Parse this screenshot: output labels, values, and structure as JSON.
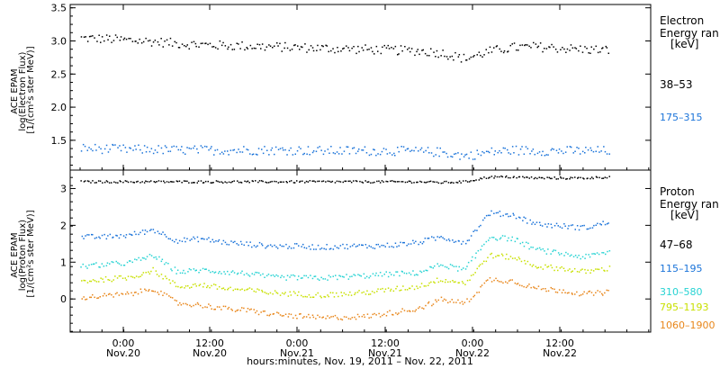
{
  "chart_data": [
    {
      "type": "scatter",
      "panel": "top",
      "ylabel_lines": [
        "ACE EPAM",
        "log(Electron Flux)",
        "[1/(cm²s ster MeV)]"
      ],
      "yticks": [
        "1.5",
        "2.0",
        "2.5",
        "3.0",
        "3.5"
      ],
      "ylim": [
        1.05,
        3.55
      ],
      "legend_title": [
        "Electron",
        "Energy ran",
        "[keV]"
      ],
      "series": [
        {
          "name": "38–53",
          "color": "#000000",
          "values": [
            3.05,
            3.04,
            3.02,
            3.0,
            2.97,
            2.95,
            2.94,
            2.93,
            2.92,
            2.91,
            2.9,
            2.89,
            2.88,
            2.87,
            2.86,
            2.83,
            2.74,
            2.85,
            2.91,
            2.92,
            2.9,
            2.88,
            2.87
          ]
        },
        {
          "name": "175–315",
          "color": "#1a73d9",
          "values": [
            1.39,
            1.38,
            1.37,
            1.37,
            1.36,
            1.36,
            1.36,
            1.36,
            1.36,
            1.36,
            1.35,
            1.35,
            1.35,
            1.35,
            1.34,
            1.33,
            1.27,
            1.33,
            1.36,
            1.35,
            1.35,
            1.35,
            1.35
          ]
        }
      ]
    },
    {
      "type": "scatter",
      "panel": "bottom",
      "ylabel_lines": [
        "ACE EPAM",
        "log(Proton Flux)",
        "[1/(cm²s ster MeV)]"
      ],
      "yticks": [
        "0",
        "1",
        "2",
        "3"
      ],
      "ylim": [
        -0.9,
        3.5
      ],
      "legend_title": [
        "Proton",
        "Energy ran",
        "[keV]"
      ],
      "series": [
        {
          "name": "47–68",
          "color": "#000000",
          "values": [
            3.2,
            3.2,
            3.2,
            3.2,
            3.2,
            3.2,
            3.2,
            3.2,
            3.2,
            3.2,
            3.2,
            3.2,
            3.2,
            3.2,
            3.2,
            3.18,
            3.2,
            3.33,
            3.33,
            3.3,
            3.3,
            3.3,
            3.33
          ]
        },
        {
          "name": "115–195",
          "color": "#1a73d9",
          "values": [
            1.7,
            1.7,
            1.75,
            1.9,
            1.6,
            1.65,
            1.55,
            1.5,
            1.45,
            1.45,
            1.42,
            1.45,
            1.45,
            1.48,
            1.55,
            1.7,
            1.55,
            2.35,
            2.3,
            2.05,
            2.0,
            1.95,
            2.1
          ]
        },
        {
          "name": "310–580",
          "color": "#27d3d3",
          "values": [
            0.9,
            0.95,
            1.0,
            1.2,
            0.75,
            0.8,
            0.75,
            0.7,
            0.6,
            0.6,
            0.58,
            0.62,
            0.65,
            0.7,
            0.72,
            0.95,
            0.8,
            1.7,
            1.65,
            1.35,
            1.25,
            1.15,
            1.3
          ]
        },
        {
          "name": "795–1193",
          "color": "#c8e000",
          "values": [
            0.5,
            0.55,
            0.6,
            0.8,
            0.35,
            0.4,
            0.3,
            0.25,
            0.18,
            0.15,
            0.12,
            0.15,
            0.2,
            0.28,
            0.35,
            0.55,
            0.45,
            1.2,
            1.15,
            0.9,
            0.85,
            0.75,
            0.85
          ]
        },
        {
          "name": "1060–1900",
          "color": "#e8861a",
          "values": [
            0.05,
            0.1,
            0.15,
            0.3,
            -0.1,
            -0.15,
            -0.25,
            -0.3,
            -0.4,
            -0.45,
            -0.5,
            -0.48,
            -0.45,
            -0.35,
            -0.25,
            0.0,
            -0.1,
            0.55,
            0.5,
            0.3,
            0.25,
            0.15,
            0.2
          ]
        }
      ]
    }
  ],
  "x_axis": {
    "ticks": [
      {
        "time": "0:00",
        "date": "Nov.20"
      },
      {
        "time": "12:00",
        "date": "Nov.20"
      },
      {
        "time": "0:00",
        "date": "Nov.21"
      },
      {
        "time": "12:00",
        "date": "Nov.21"
      },
      {
        "time": "0:00",
        "date": "Nov.22"
      },
      {
        "time": "12:00",
        "date": "Nov.22"
      }
    ],
    "xlabel": "hours:minutes, Nov. 19, 2011 – Nov. 22, 2011"
  }
}
